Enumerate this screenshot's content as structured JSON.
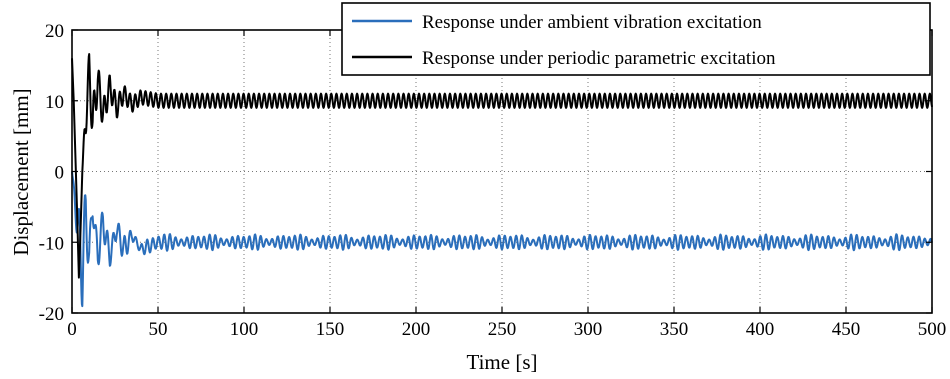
{
  "chart_data": {
    "type": "line",
    "title": "",
    "xlabel": "Time [s]",
    "ylabel": "Displacement [mm]",
    "xlim": [
      0,
      500
    ],
    "ylim": [
      -20,
      20
    ],
    "xticks": [
      "0",
      "50",
      "100",
      "150",
      "200",
      "250",
      "300",
      "350",
      "400",
      "450",
      "500"
    ],
    "yticks": [
      "20",
      "10",
      "0",
      "-10",
      "-20"
    ],
    "grid": "dotted",
    "legend_position": "top-right",
    "series": [
      {
        "name": "Response under ambient vibration excitation",
        "color": "#2a6ebb",
        "x": [
          0,
          2,
          4,
          6,
          8,
          10,
          12,
          15,
          18,
          22,
          26,
          30,
          35,
          40,
          50,
          75,
          100,
          125,
          150,
          175,
          200,
          225,
          250,
          275,
          300,
          325,
          350,
          375,
          400,
          425,
          450,
          475,
          500
        ],
        "y": [
          0,
          -5,
          -9,
          -14,
          -6,
          -12,
          -5,
          -12,
          -7,
          -12,
          -8,
          -11,
          -9,
          -11,
          -10,
          -10,
          -10,
          -10,
          -10,
          -10,
          -10,
          -10,
          -10,
          -10,
          -10,
          -10,
          -10,
          -10,
          -10,
          -10,
          -10,
          -10,
          -10
        ],
        "envelope_halfwidth": [
          0,
          2,
          4,
          6,
          6,
          6,
          5,
          4,
          3,
          2.5,
          2,
          1.8,
          1.6,
          1.5,
          1.3,
          1.2,
          1.2,
          1.2,
          1.2,
          1.2,
          1.2,
          1.2,
          1.2,
          1.2,
          1.2,
          1.2,
          1.2,
          1.2,
          1.2,
          1.2,
          1.2,
          1.2,
          1.2
        ]
      },
      {
        "name": "Response under periodic parametric excitation",
        "color": "#000000",
        "x": [
          0,
          1,
          2,
          3,
          4,
          5,
          6,
          8,
          10,
          12,
          15,
          18,
          22,
          26,
          30,
          35,
          40,
          50,
          75,
          100,
          125,
          150,
          175,
          200,
          225,
          250,
          275,
          300,
          325,
          350,
          375,
          400,
          425,
          450,
          475,
          500
        ],
        "y": [
          16,
          10,
          2,
          -6,
          -15,
          -8,
          0,
          8,
          14,
          7,
          13,
          8,
          12,
          9,
          11,
          9.5,
          10.5,
          10,
          10,
          10,
          10,
          10,
          10,
          10,
          10,
          10,
          10,
          10,
          10,
          10,
          10,
          10,
          10,
          10,
          10,
          10
        ],
        "envelope_halfwidth": [
          0,
          0,
          0,
          0,
          0,
          0,
          0,
          3,
          3,
          3,
          2.5,
          2,
          1.8,
          1.5,
          1.3,
          1.1,
          1,
          1,
          1,
          1,
          1,
          1,
          1,
          1,
          1,
          1,
          1,
          1,
          1,
          1,
          1,
          1,
          1,
          1,
          1,
          1
        ]
      }
    ]
  }
}
